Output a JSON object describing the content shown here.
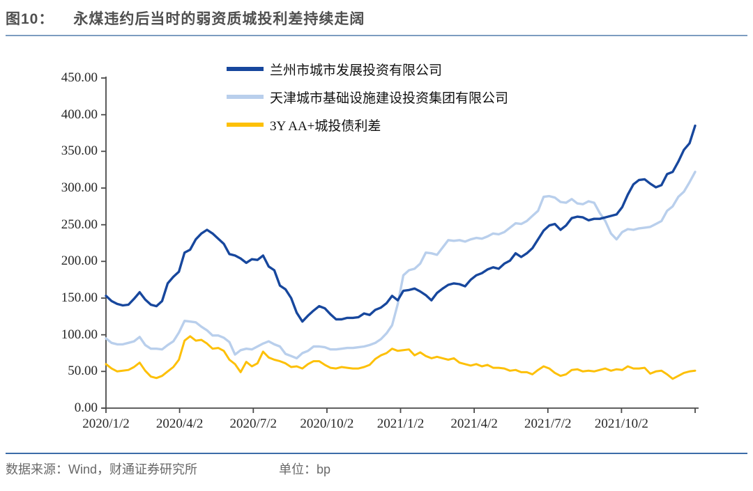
{
  "figure": {
    "label": "图10：",
    "title": "永煤违约后当时的弱资质城投利差持续走阔"
  },
  "footer": {
    "source": "数据来源：Wind，财通证券研究所",
    "unit": "单位：bp"
  },
  "colors": {
    "series1": "#17479d",
    "series2": "#b9cfec",
    "series3": "#fdc008",
    "axis": "#4a4a4a",
    "title_rule": "#7c9cc0",
    "footer_rule": "#3b6ca8"
  },
  "chart_data": {
    "type": "line",
    "title": "永煤违约后当时的弱资质城投利差持续走阔",
    "unit": "bp",
    "grid": false,
    "legend_position": "top-inside-vertical",
    "ylim": [
      0,
      450
    ],
    "y_ticks": [
      0,
      50,
      100,
      150,
      200,
      250,
      300,
      350,
      400,
      450
    ],
    "y_tick_labels": [
      "0.00",
      "50.00",
      "100.00",
      "150.00",
      "200.00",
      "250.00",
      "300.00",
      "350.00",
      "400.00",
      "450.00"
    ],
    "x_ticks": [
      "2020/1/2",
      "2020/4/2",
      "2020/7/2",
      "2020/10/2",
      "2021/1/2",
      "2021/4/2",
      "2021/7/2",
      "2021/10/2"
    ],
    "x_note": "series spans 2020/1/2 through end of 2021, sampled at 106 roughly weekly points",
    "series": [
      {
        "name": "兰州市城市发展投资有限公司",
        "color": "#17479d",
        "values": [
          153,
          146,
          142,
          140,
          141,
          149,
          158,
          148,
          141,
          139,
          146,
          170,
          179,
          186,
          212,
          216,
          230,
          238,
          243,
          238,
          231,
          224,
          210,
          208,
          204,
          198,
          203,
          202,
          208,
          193,
          188,
          167,
          162,
          150,
          130,
          118,
          126,
          133,
          139,
          136,
          128,
          121,
          121,
          123,
          123,
          124,
          129,
          127,
          134,
          137,
          143,
          153,
          147,
          160,
          161,
          163,
          159,
          154,
          147,
          157,
          163,
          168,
          170,
          169,
          166,
          175,
          181,
          184,
          189,
          192,
          190,
          197,
          201,
          211,
          206,
          211,
          218,
          230,
          242,
          249,
          251,
          243,
          249,
          259,
          261,
          260,
          256,
          258,
          258,
          260,
          262,
          264,
          274,
          291,
          305,
          311,
          312,
          306,
          301,
          304,
          319,
          322,
          336,
          352,
          361,
          385
        ]
      },
      {
        "name": "天津城市基础设施建设投资集团有限公司",
        "color": "#b9cfec",
        "values": [
          95,
          89,
          87,
          87,
          89,
          91,
          97,
          86,
          81,
          81,
          80,
          86,
          91,
          103,
          119,
          118,
          117,
          111,
          106,
          99,
          99,
          96,
          90,
          73,
          79,
          81,
          80,
          84,
          88,
          91,
          87,
          84,
          74,
          71,
          68,
          75,
          78,
          84,
          84,
          83,
          80,
          80,
          81,
          82,
          82,
          83,
          84,
          86,
          89,
          94,
          102,
          113,
          142,
          181,
          188,
          190,
          197,
          212,
          211,
          209,
          219,
          229,
          228,
          229,
          227,
          230,
          232,
          231,
          234,
          238,
          237,
          240,
          246,
          252,
          251,
          255,
          262,
          269,
          288,
          289,
          287,
          281,
          280,
          285,
          279,
          278,
          282,
          280,
          266,
          255,
          238,
          230,
          240,
          244,
          243,
          245,
          246,
          247,
          251,
          255,
          269,
          275,
          288,
          295,
          308,
          322
        ]
      },
      {
        "name": "3Y AA+城投债利差",
        "color": "#fdc008",
        "values": [
          60,
          54,
          50,
          51,
          52,
          56,
          62,
          51,
          43,
          41,
          44,
          50,
          56,
          66,
          92,
          98,
          92,
          93,
          88,
          81,
          82,
          78,
          66,
          60,
          49,
          63,
          57,
          61,
          77,
          69,
          66,
          64,
          61,
          56,
          57,
          54,
          60,
          64,
          64,
          59,
          55,
          54,
          56,
          55,
          54,
          54,
          56,
          59,
          67,
          72,
          75,
          81,
          78,
          79,
          80,
          72,
          76,
          71,
          68,
          70,
          68,
          66,
          68,
          62,
          60,
          58,
          60,
          57,
          59,
          55,
          55,
          54,
          51,
          52,
          49,
          49,
          46,
          52,
          57,
          54,
          48,
          44,
          46,
          52,
          53,
          50,
          51,
          50,
          52,
          54,
          51,
          53,
          52,
          57,
          54,
          54,
          55,
          47,
          50,
          51,
          46,
          40,
          44,
          48,
          50,
          51
        ]
      }
    ]
  }
}
